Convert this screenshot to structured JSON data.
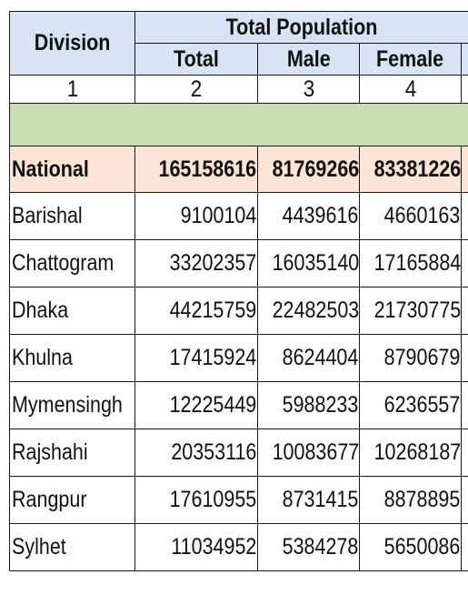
{
  "header": {
    "division_label": "Division",
    "group_label": "Total Population",
    "columns": [
      "Total",
      "Male",
      "Female"
    ],
    "column_numbers": [
      "1",
      "2",
      "3",
      "4"
    ]
  },
  "rows": [
    {
      "division": "National",
      "total": "165158616",
      "male": "81769266",
      "female": "83381226"
    },
    {
      "division": "Barishal",
      "total": "9100104",
      "male": "4439616",
      "female": "4660163"
    },
    {
      "division": "Chattogram",
      "total": "33202357",
      "male": "16035140",
      "female": "17165884"
    },
    {
      "division": "Dhaka",
      "total": "44215759",
      "male": "22482503",
      "female": "21730775"
    },
    {
      "division": "Khulna",
      "total": "17415924",
      "male": "8624404",
      "female": "8790679"
    },
    {
      "division": "Mymensingh",
      "total": "12225449",
      "male": "5988233",
      "female": "6236557"
    },
    {
      "division": "Rajshahi",
      "total": "20353116",
      "male": "10083677",
      "female": "10268187"
    },
    {
      "division": "Rangpur",
      "total": "17610955",
      "male": "8731415",
      "female": "8878895"
    },
    {
      "division": "Sylhet",
      "total": "11034952",
      "male": "5384278",
      "female": "5650086"
    }
  ],
  "colors": {
    "header_bg": "#dae3f3",
    "band_bg": "#c6e0b4",
    "national_bg": "#fbe5d6",
    "border": "#1a1a1a"
  }
}
